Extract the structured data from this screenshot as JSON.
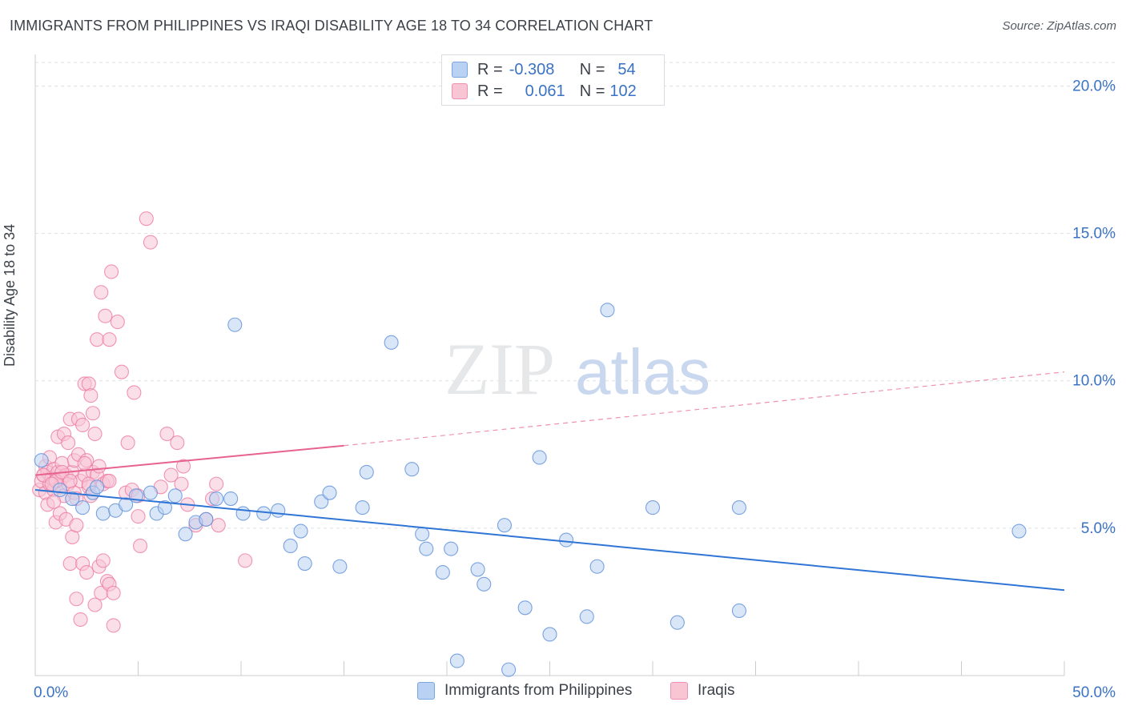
{
  "title": "IMMIGRANTS FROM PHILIPPINES VS IRAQI DISABILITY AGE 18 TO 34 CORRELATION CHART",
  "source": "Source: ZipAtlas.com",
  "watermark": {
    "zip": "ZIP",
    "atlas": "atlas"
  },
  "legend": {
    "r_label": "R =",
    "n_label": "N =",
    "rows": [
      {
        "r": "-0.308",
        "n": "54",
        "fill": "#b9d2f3",
        "stroke": "#7aa6e0"
      },
      {
        "r": "0.061",
        "n": "102",
        "fill": "#f8c5d5",
        "stroke": "#ee91b1"
      }
    ]
  },
  "chart_data": {
    "type": "scatter",
    "title": "IMMIGRANTS FROM PHILIPPINES VS IRAQI DISABILITY AGE 18 TO 34 CORRELATION CHART",
    "xlabel": "",
    "ylabel": "Disability Age 18 to 34",
    "xlim": [
      0,
      50
    ],
    "ylim": [
      0,
      20.8
    ],
    "x_tick_labels": [
      "0.0%",
      "50.0%"
    ],
    "y_ticks": [
      5,
      10,
      15,
      20
    ],
    "y_tick_labels": [
      "5.0%",
      "10.0%",
      "15.0%",
      "20.0%"
    ],
    "grid": "horizontal dashed",
    "legend_position": "top-center",
    "series": [
      {
        "name": "Immigrants from Philippines",
        "color": "#5b8fd8",
        "fill": "#b9d2f3",
        "trend": {
          "x": [
            0,
            50
          ],
          "y": [
            6.3,
            2.9
          ],
          "color": "#2f75d6",
          "style": "solid"
        },
        "points": [
          [
            0.3,
            7.3
          ],
          [
            1.2,
            6.3
          ],
          [
            1.8,
            6.0
          ],
          [
            2.3,
            5.7
          ],
          [
            2.8,
            6.2
          ],
          [
            3.3,
            5.5
          ],
          [
            3.9,
            5.6
          ],
          [
            4.4,
            5.8
          ],
          [
            4.9,
            6.1
          ],
          [
            5.6,
            6.2
          ],
          [
            5.9,
            5.5
          ],
          [
            6.3,
            5.7
          ],
          [
            6.8,
            6.1
          ],
          [
            7.3,
            4.8
          ],
          [
            7.8,
            5.2
          ],
          [
            8.3,
            5.3
          ],
          [
            8.8,
            6.0
          ],
          [
            9.5,
            6.0
          ],
          [
            9.7,
            11.9
          ],
          [
            10.1,
            5.5
          ],
          [
            11.1,
            5.5
          ],
          [
            11.8,
            5.6
          ],
          [
            12.4,
            4.4
          ],
          [
            12.9,
            4.9
          ],
          [
            13.1,
            3.8
          ],
          [
            13.9,
            5.9
          ],
          [
            14.3,
            6.2
          ],
          [
            14.8,
            3.7
          ],
          [
            15.9,
            5.7
          ],
          [
            16.1,
            6.9
          ],
          [
            17.3,
            11.3
          ],
          [
            18.3,
            7.0
          ],
          [
            18.8,
            4.8
          ],
          [
            19.0,
            4.3
          ],
          [
            19.8,
            3.5
          ],
          [
            20.2,
            4.3
          ],
          [
            20.5,
            0.5
          ],
          [
            21.5,
            3.6
          ],
          [
            21.8,
            3.1
          ],
          [
            22.8,
            5.1
          ],
          [
            23.8,
            2.3
          ],
          [
            24.5,
            7.4
          ],
          [
            25.0,
            1.4
          ],
          [
            25.8,
            4.6
          ],
          [
            26.8,
            2.0
          ],
          [
            27.3,
            3.7
          ],
          [
            27.8,
            12.4
          ],
          [
            30.0,
            5.7
          ],
          [
            31.2,
            1.8
          ],
          [
            34.2,
            5.7
          ],
          [
            34.2,
            2.2
          ],
          [
            47.8,
            4.9
          ],
          [
            23.0,
            0.2
          ],
          [
            3.0,
            6.4
          ]
        ]
      },
      {
        "name": "Iraqis",
        "color": "#ee7aa2",
        "fill": "#f8c5d5",
        "trend": {
          "x": [
            0,
            15
          ],
          "y": [
            6.8,
            7.8
          ],
          "color": "#e8628f",
          "style": "solid",
          "extension": {
            "x": [
              15,
              50
            ],
            "y": [
              7.8,
              10.3
            ],
            "style": "dashed"
          }
        },
        "points": [
          [
            0.2,
            6.3
          ],
          [
            0.3,
            6.6
          ],
          [
            0.4,
            6.8
          ],
          [
            0.5,
            7.1
          ],
          [
            0.5,
            6.2
          ],
          [
            0.6,
            5.8
          ],
          [
            0.6,
            6.9
          ],
          [
            0.7,
            6.5
          ],
          [
            0.7,
            7.4
          ],
          [
            0.8,
            6.7
          ],
          [
            0.9,
            6.3
          ],
          [
            0.9,
            7.0
          ],
          [
            1.0,
            6.6
          ],
          [
            1.0,
            5.2
          ],
          [
            1.1,
            6.9
          ],
          [
            1.1,
            8.1
          ],
          [
            1.2,
            6.4
          ],
          [
            1.2,
            5.5
          ],
          [
            1.3,
            7.2
          ],
          [
            1.3,
            6.7
          ],
          [
            1.4,
            6.1
          ],
          [
            1.4,
            8.2
          ],
          [
            1.5,
            6.8
          ],
          [
            1.5,
            5.3
          ],
          [
            1.6,
            7.9
          ],
          [
            1.6,
            6.5
          ],
          [
            1.7,
            3.8
          ],
          [
            1.7,
            8.7
          ],
          [
            1.8,
            6.9
          ],
          [
            1.8,
            4.7
          ],
          [
            1.9,
            7.3
          ],
          [
            1.9,
            6.2
          ],
          [
            2.0,
            5.1
          ],
          [
            2.0,
            2.6
          ],
          [
            2.1,
            7.5
          ],
          [
            2.1,
            8.7
          ],
          [
            2.2,
            6.6
          ],
          [
            2.2,
            1.9
          ],
          [
            2.3,
            8.5
          ],
          [
            2.3,
            3.8
          ],
          [
            2.4,
            9.9
          ],
          [
            2.4,
            6.8
          ],
          [
            2.5,
            3.5
          ],
          [
            2.5,
            7.3
          ],
          [
            2.6,
            9.9
          ],
          [
            2.6,
            6.4
          ],
          [
            2.7,
            9.5
          ],
          [
            2.7,
            6.1
          ],
          [
            2.8,
            8.9
          ],
          [
            2.8,
            6.9
          ],
          [
            2.9,
            8.2
          ],
          [
            2.9,
            2.4
          ],
          [
            3.0,
            11.4
          ],
          [
            3.0,
            6.8
          ],
          [
            3.1,
            7.1
          ],
          [
            3.1,
            3.7
          ],
          [
            3.2,
            13.0
          ],
          [
            3.2,
            2.8
          ],
          [
            3.3,
            3.9
          ],
          [
            3.3,
            6.5
          ],
          [
            3.4,
            12.2
          ],
          [
            3.5,
            3.2
          ],
          [
            3.5,
            6.6
          ],
          [
            3.6,
            3.1
          ],
          [
            3.6,
            11.4
          ],
          [
            3.7,
            13.7
          ],
          [
            3.8,
            1.7
          ],
          [
            3.8,
            2.8
          ],
          [
            4.0,
            12.0
          ],
          [
            4.2,
            10.3
          ],
          [
            4.4,
            6.2
          ],
          [
            4.5,
            7.9
          ],
          [
            4.7,
            6.3
          ],
          [
            4.8,
            9.6
          ],
          [
            5.0,
            6.1
          ],
          [
            5.0,
            5.4
          ],
          [
            5.1,
            4.4
          ],
          [
            5.4,
            15.5
          ],
          [
            5.6,
            14.7
          ],
          [
            6.1,
            6.4
          ],
          [
            6.4,
            8.2
          ],
          [
            6.6,
            6.8
          ],
          [
            6.9,
            7.9
          ],
          [
            7.1,
            6.5
          ],
          [
            7.2,
            7.1
          ],
          [
            7.4,
            5.8
          ],
          [
            7.8,
            5.1
          ],
          [
            8.3,
            5.3
          ],
          [
            8.6,
            6.0
          ],
          [
            8.8,
            6.5
          ],
          [
            8.9,
            5.1
          ],
          [
            10.2,
            3.9
          ],
          [
            1.0,
            6.6
          ],
          [
            0.4,
            6.8
          ],
          [
            2.6,
            6.5
          ],
          [
            1.3,
            6.9
          ],
          [
            0.8,
            6.5
          ],
          [
            2.0,
            6.0
          ],
          [
            3.6,
            6.6
          ],
          [
            0.9,
            5.9
          ],
          [
            1.7,
            6.6
          ],
          [
            2.4,
            7.2
          ]
        ]
      }
    ]
  },
  "bottom_legend": [
    {
      "label": "Immigrants from Philippines",
      "fill": "#b9d2f3",
      "stroke": "#7aa6e0"
    },
    {
      "label": "Iraqis",
      "fill": "#f8c5d5",
      "stroke": "#ee91b1"
    }
  ]
}
